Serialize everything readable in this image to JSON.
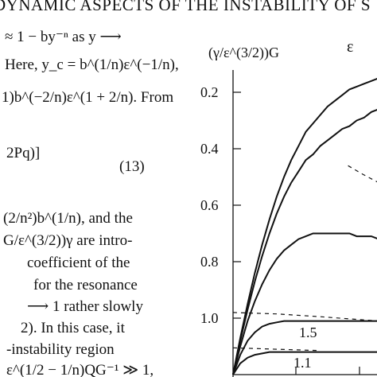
{
  "running_header": "DYNAMIC ASPECTS OF THE INSTABILITY OF S",
  "body_lines": [
    "≈ 1 − by⁻ⁿ as y ⟶",
    "Here, y_c = b^(1/n)ε^(−1/n),",
    "1)b^(−2/n)ε^(1 + 2/n). From",
    "2Pq)]",
    "",
    "(2/n²)b^(1/n), and the",
    "G/ε^(3/2))γ are intro-",
    "coefficient of the",
    "for the resonance",
    "⟶ 1 rather slowly",
    "2). In this case, it",
    "-instability region",
    "ε^(1/2 − 1/n)QG⁻¹ ≫ 1,"
  ],
  "equation_number": "(13)",
  "figure": {
    "y_axis_label": "(γ/ε^(3/2))G",
    "corner_label": "ε",
    "y_ticks": [
      "1.0",
      "0.8",
      "0.6",
      "0.4",
      "0.2"
    ],
    "curve_labels": [
      "1.5",
      "1.1"
    ]
  },
  "chart_data": {
    "type": "line",
    "ylabel": "(γ/ε^(3/2))G",
    "ylim": [
      0,
      1.1
    ],
    "y_ticks": [
      0.2,
      0.4,
      0.6,
      0.8,
      1.0
    ],
    "x_normalized": [
      0,
      0.05,
      0.1,
      0.15,
      0.2,
      0.25,
      0.3,
      0.35,
      0.4,
      0.45,
      0.5,
      0.55,
      0.6,
      0.65,
      0.7,
      0.75,
      0.8,
      0.85,
      0.9,
      0.95,
      1.0
    ],
    "series": [
      {
        "values": [
          0,
          0.13,
          0.25,
          0.36,
          0.46,
          0.55,
          0.63,
          0.7,
          0.76,
          0.81,
          0.86,
          0.89,
          0.92,
          0.95,
          0.97,
          0.99,
          1.01,
          1.02,
          1.03,
          1.04,
          1.05
        ]
      },
      {
        "values": [
          0,
          0.12,
          0.23,
          0.33,
          0.42,
          0.5,
          0.57,
          0.63,
          0.68,
          0.72,
          0.76,
          0.78,
          0.81,
          0.83,
          0.85,
          0.87,
          0.88,
          0.9,
          0.91,
          0.93,
          0.94
        ]
      },
      {
        "values": [
          0,
          0.1,
          0.19,
          0.26,
          0.32,
          0.37,
          0.41,
          0.44,
          0.46,
          0.48,
          0.49,
          0.5,
          0.5,
          0.5,
          0.5,
          0.5,
          0.5,
          0.49,
          0.49,
          0.49,
          0.48
        ]
      },
      {
        "name": "1.5",
        "values": [
          0,
          0.07,
          0.12,
          0.15,
          0.17,
          0.18,
          0.185,
          0.19,
          0.19,
          0.19,
          0.19,
          0.19,
          0.19,
          0.19,
          0.19,
          0.19,
          0.19,
          0.19,
          0.19,
          0.19,
          0.19
        ]
      },
      {
        "name": "1.1",
        "values": [
          0,
          0.04,
          0.06,
          0.07,
          0.075,
          0.08,
          0.08,
          0.08,
          0.08,
          0.08,
          0.08,
          0.08,
          0.08,
          0.08,
          0.08,
          0.08,
          0.08,
          0.08,
          0.08,
          0.08,
          0.08
        ]
      }
    ],
    "dashed_series": [
      {
        "values_x": [
          0,
          0.3,
          0.6,
          1.0
        ],
        "values_y": [
          0.22,
          0.215,
          0.205,
          0.19
        ]
      },
      {
        "values_x": [
          0,
          0.3,
          0.6
        ],
        "values_y": [
          0.095,
          0.09,
          0.085
        ]
      },
      {
        "values_x": [
          0.79,
          0.89,
          1.0
        ],
        "values_y": [
          0.74,
          0.71,
          0.68
        ]
      }
    ]
  }
}
